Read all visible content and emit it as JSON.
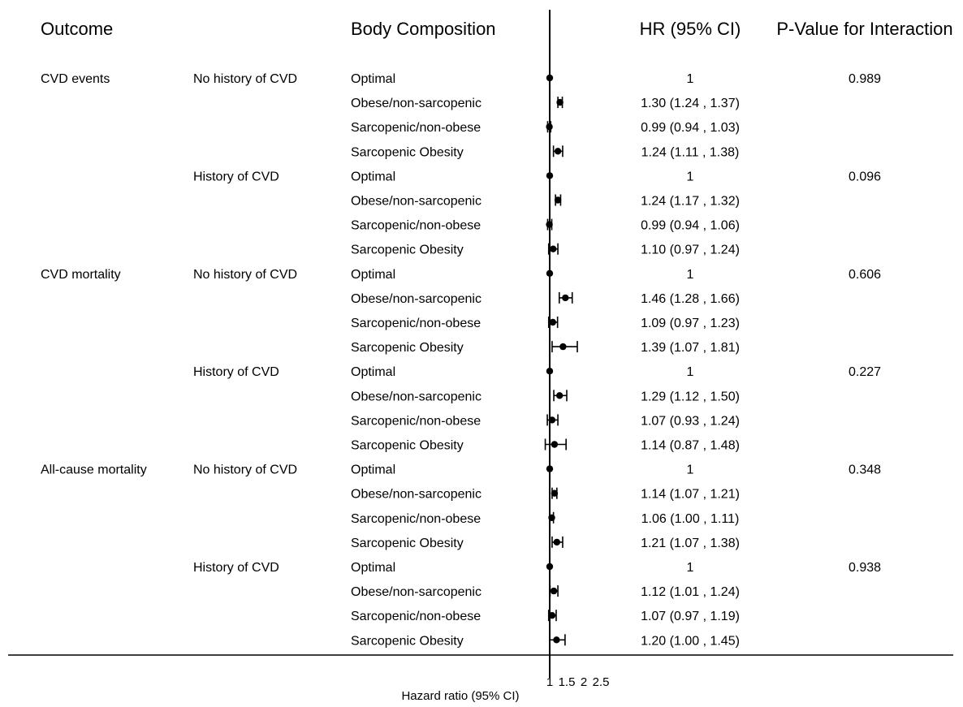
{
  "chart_data": {
    "type": "forest",
    "headers": {
      "outcome": "Outcome",
      "body_composition": "Body Composition",
      "hr": "HR (95% CI)",
      "p_value": "P-Value for Interaction"
    },
    "xlabel": "Hazard ratio (95% CI)",
    "x_ticks": [
      "1",
      "1.5",
      "2",
      "2.5"
    ],
    "xlim": [
      1,
      2.5
    ],
    "rows": [
      {
        "outcome": "CVD events",
        "group": "No history of CVD",
        "composition": "Optimal",
        "hr": 1,
        "lo": 1,
        "hi": 1,
        "hr_text": "1",
        "p": "0.989"
      },
      {
        "outcome": "",
        "group": "",
        "composition": "Obese/non-sarcopenic",
        "hr": 1.3,
        "lo": 1.24,
        "hi": 1.37,
        "hr_text": "1.30 (1.24 , 1.37)",
        "p": ""
      },
      {
        "outcome": "",
        "group": "",
        "composition": "Sarcopenic/non-obese",
        "hr": 0.99,
        "lo": 0.94,
        "hi": 1.03,
        "hr_text": "0.99 (0.94 , 1.03)",
        "p": ""
      },
      {
        "outcome": "",
        "group": "",
        "composition": "Sarcopenic Obesity",
        "hr": 1.24,
        "lo": 1.11,
        "hi": 1.38,
        "hr_text": "1.24 (1.11 , 1.38)",
        "p": ""
      },
      {
        "outcome": "",
        "group": "History of CVD",
        "composition": "Optimal",
        "hr": 1,
        "lo": 1,
        "hi": 1,
        "hr_text": "1",
        "p": "0.096"
      },
      {
        "outcome": "",
        "group": "",
        "composition": "Obese/non-sarcopenic",
        "hr": 1.24,
        "lo": 1.17,
        "hi": 1.32,
        "hr_text": "1.24 (1.17 , 1.32)",
        "p": ""
      },
      {
        "outcome": "",
        "group": "",
        "composition": "Sarcopenic/non-obese",
        "hr": 0.99,
        "lo": 0.94,
        "hi": 1.06,
        "hr_text": "0.99 (0.94 , 1.06)",
        "p": ""
      },
      {
        "outcome": "",
        "group": "",
        "composition": "Sarcopenic Obesity",
        "hr": 1.1,
        "lo": 0.97,
        "hi": 1.24,
        "hr_text": "1.10 (0.97 , 1.24)",
        "p": ""
      },
      {
        "outcome": "CVD mortality",
        "group": "No history of CVD",
        "composition": "Optimal",
        "hr": 1,
        "lo": 1,
        "hi": 1,
        "hr_text": "1",
        "p": "0.606"
      },
      {
        "outcome": "",
        "group": "",
        "composition": "Obese/non-sarcopenic",
        "hr": 1.46,
        "lo": 1.28,
        "hi": 1.66,
        "hr_text": "1.46 (1.28 , 1.66)",
        "p": ""
      },
      {
        "outcome": "",
        "group": "",
        "composition": "Sarcopenic/non-obese",
        "hr": 1.09,
        "lo": 0.97,
        "hi": 1.23,
        "hr_text": "1.09 (0.97 , 1.23)",
        "p": ""
      },
      {
        "outcome": "",
        "group": "",
        "composition": "Sarcopenic Obesity",
        "hr": 1.39,
        "lo": 1.07,
        "hi": 1.81,
        "hr_text": "1.39 (1.07 , 1.81)",
        "p": ""
      },
      {
        "outcome": "",
        "group": "History of CVD",
        "composition": "Optimal",
        "hr": 1,
        "lo": 1,
        "hi": 1,
        "hr_text": "1",
        "p": "0.227"
      },
      {
        "outcome": "",
        "group": "",
        "composition": "Obese/non-sarcopenic",
        "hr": 1.29,
        "lo": 1.12,
        "hi": 1.5,
        "hr_text": "1.29 (1.12 , 1.50)",
        "p": ""
      },
      {
        "outcome": "",
        "group": "",
        "composition": "Sarcopenic/non-obese",
        "hr": 1.07,
        "lo": 0.93,
        "hi": 1.24,
        "hr_text": "1.07 (0.93 , 1.24)",
        "p": ""
      },
      {
        "outcome": "",
        "group": "",
        "composition": "Sarcopenic Obesity",
        "hr": 1.14,
        "lo": 0.87,
        "hi": 1.48,
        "hr_text": "1.14 (0.87 , 1.48)",
        "p": ""
      },
      {
        "outcome": "All-cause mortality",
        "group": "No history of CVD",
        "composition": "Optimal",
        "hr": 1,
        "lo": 1,
        "hi": 1,
        "hr_text": "1",
        "p": "0.348"
      },
      {
        "outcome": "",
        "group": "",
        "composition": "Obese/non-sarcopenic",
        "hr": 1.14,
        "lo": 1.07,
        "hi": 1.21,
        "hr_text": "1.14 (1.07 , 1.21)",
        "p": ""
      },
      {
        "outcome": "",
        "group": "",
        "composition": "Sarcopenic/non-obese",
        "hr": 1.06,
        "lo": 1.0,
        "hi": 1.11,
        "hr_text": "1.06 (1.00 , 1.11)",
        "p": ""
      },
      {
        "outcome": "",
        "group": "",
        "composition": "Sarcopenic Obesity",
        "hr": 1.21,
        "lo": 1.07,
        "hi": 1.38,
        "hr_text": "1.21 (1.07 , 1.38)",
        "p": ""
      },
      {
        "outcome": "",
        "group": "History of CVD",
        "composition": "Optimal",
        "hr": 1,
        "lo": 1,
        "hi": 1,
        "hr_text": "1",
        "p": "0.938"
      },
      {
        "outcome": "",
        "group": "",
        "composition": "Obese/non-sarcopenic",
        "hr": 1.12,
        "lo": 1.01,
        "hi": 1.24,
        "hr_text": "1.12 (1.01 , 1.24)",
        "p": ""
      },
      {
        "outcome": "",
        "group": "",
        "composition": "Sarcopenic/non-obese",
        "hr": 1.07,
        "lo": 0.97,
        "hi": 1.19,
        "hr_text": "1.07 (0.97 , 1.19)",
        "p": ""
      },
      {
        "outcome": "",
        "group": "",
        "composition": "Sarcopenic Obesity",
        "hr": 1.2,
        "lo": 1.0,
        "hi": 1.45,
        "hr_text": "1.20 (1.00 , 1.45)",
        "p": ""
      }
    ]
  }
}
